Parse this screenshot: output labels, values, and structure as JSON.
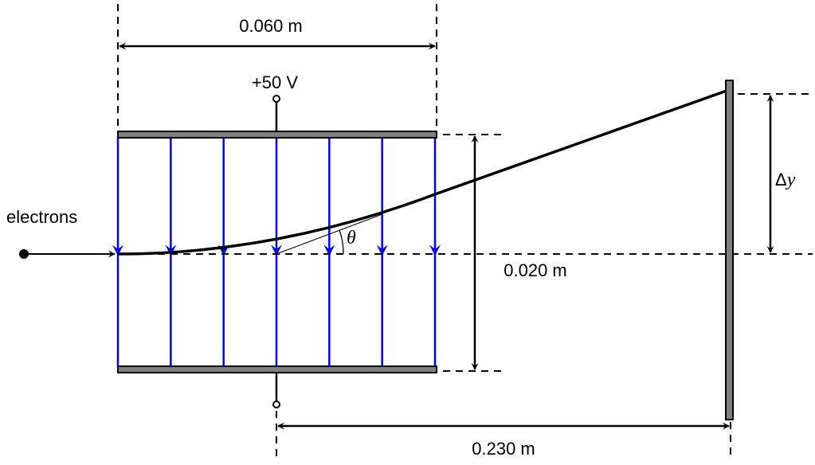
{
  "labels": {
    "plate_length": "0.060 m",
    "voltage": "+50 V",
    "particle": "electrons",
    "plate_separation": "0.020 m",
    "distance_to_screen": "0.230 m",
    "deflection_prefix": "Δ",
    "deflection_var": "y",
    "angle": "θ"
  },
  "colors": {
    "field_lines": "#0000ff",
    "plates": "#808080",
    "screen": "#808080"
  },
  "field_line_count": 7
}
